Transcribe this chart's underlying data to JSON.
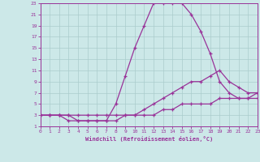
{
  "background_color": "#cce8e8",
  "grid_color": "#aacccc",
  "line_color": "#993399",
  "xlabel": "Windchill (Refroidissement éolien,°C)",
  "xlim": [
    0,
    23
  ],
  "ylim": [
    1,
    23
  ],
  "xticks": [
    0,
    1,
    2,
    3,
    4,
    5,
    6,
    7,
    8,
    9,
    10,
    11,
    12,
    13,
    14,
    15,
    16,
    17,
    18,
    19,
    20,
    21,
    22,
    23
  ],
  "yticks": [
    1,
    3,
    5,
    7,
    9,
    11,
    13,
    15,
    17,
    19,
    21,
    23
  ],
  "line1_x": [
    0,
    1,
    2,
    3,
    4,
    5,
    6,
    7,
    8,
    9,
    10,
    11,
    12,
    13,
    14,
    15,
    16,
    17,
    18,
    19,
    20,
    21,
    22,
    23
  ],
  "line1_y": [
    3,
    3,
    3,
    3,
    2,
    2,
    2,
    2,
    5,
    10,
    15,
    19,
    23,
    23,
    23,
    23,
    21,
    18,
    14,
    9,
    7,
    6,
    6,
    6
  ],
  "line2_x": [
    0,
    1,
    2,
    3,
    4,
    5,
    6,
    7,
    8,
    9,
    10,
    11,
    12,
    13,
    14,
    15,
    16,
    17,
    18,
    19,
    20,
    21,
    22,
    23
  ],
  "line2_y": [
    3,
    3,
    3,
    2,
    2,
    2,
    2,
    2,
    2,
    3,
    3,
    4,
    5,
    6,
    7,
    8,
    9,
    9,
    10,
    11,
    9,
    8,
    7,
    7
  ],
  "line3_x": [
    0,
    1,
    2,
    3,
    4,
    5,
    6,
    7,
    8,
    9,
    10,
    11,
    12,
    13,
    14,
    15,
    16,
    17,
    18,
    19,
    20,
    21,
    22,
    23
  ],
  "line3_y": [
    3,
    3,
    3,
    3,
    3,
    3,
    3,
    3,
    3,
    3,
    3,
    3,
    3,
    4,
    4,
    5,
    5,
    5,
    5,
    6,
    6,
    6,
    6,
    7
  ]
}
